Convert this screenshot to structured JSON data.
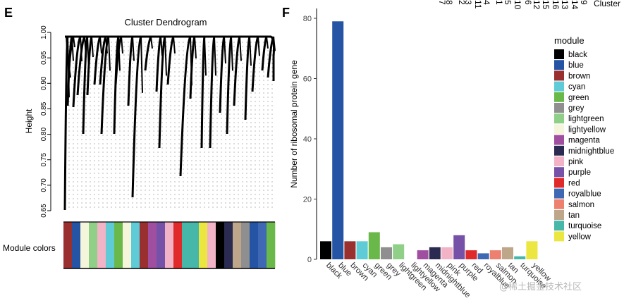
{
  "panel_e_letter": "E",
  "panel_f_letter": "F",
  "dendrogram": {
    "title": "Cluster Dendrogram",
    "ylabel": "Height",
    "yticks": [
      "0.65",
      "0.70",
      "0.75",
      "0.80",
      "0.85",
      "0.90",
      "0.95",
      "1.00"
    ],
    "ylim": [
      0.65,
      1.0
    ],
    "module_colors_label": "Module colors"
  },
  "top_fragment": {
    "text": "Cluster",
    "numbers": [
      "7",
      "8",
      "2",
      "3",
      "11",
      "4",
      "1",
      "5",
      "10",
      "6",
      "12",
      "15",
      "16",
      "13",
      "14",
      "9"
    ]
  },
  "watermark": "@稀土掘金技术社区",
  "colors": {
    "black": "#000000",
    "blue": "#2554a4",
    "brown": "#9a2f2f",
    "cyan": "#5fcbd6",
    "green": "#6ab84a",
    "grey": "#8f8f8f",
    "lightgreen": "#8fcf88",
    "lightyellow": "#f5f5dc",
    "magenta": "#a04fa0",
    "midnightblue": "#2b2b52",
    "pink": "#f2b3c6",
    "purple": "#7551a8",
    "red": "#e02a2a",
    "royalblue": "#3f68b4",
    "salmon": "#ee8070",
    "tan": "#bea68a",
    "turquoise": "#46b7a9",
    "yellow": "#ece640"
  },
  "color_strip": [
    "brown",
    "blue",
    "lightyellow",
    "lightgreen",
    "pink",
    "cyan",
    "green",
    "lightyellow",
    "cyan",
    "brown",
    "magenta",
    "purple",
    "pink",
    "red",
    "turquoise",
    "turquoise",
    "yellow",
    "pink",
    "black",
    "midnightblue",
    "tan",
    "grey",
    "blue",
    "royalblue",
    "green"
  ],
  "chart_data": {
    "type": "bar",
    "title": "",
    "xlabel": "",
    "ylabel": "Number of  ribosomal protein  gene",
    "ylim": [
      0,
      80
    ],
    "yticks": [
      "0",
      "20",
      "40",
      "60",
      "80"
    ],
    "categories": [
      "black",
      "blue",
      "brown",
      "cyan",
      "green",
      "grey",
      "lightgreen",
      "lightyellow",
      "magenta",
      "midnightblue",
      "pink",
      "purple",
      "red",
      "royalblue",
      "salmon",
      "tan",
      "turquoise",
      "yellow"
    ],
    "values": [
      6,
      79,
      6,
      6,
      9,
      4,
      5,
      0,
      3,
      4,
      4,
      8,
      3,
      2,
      3,
      4,
      1,
      6
    ],
    "legend_title": "module",
    "legend_position": "right"
  }
}
